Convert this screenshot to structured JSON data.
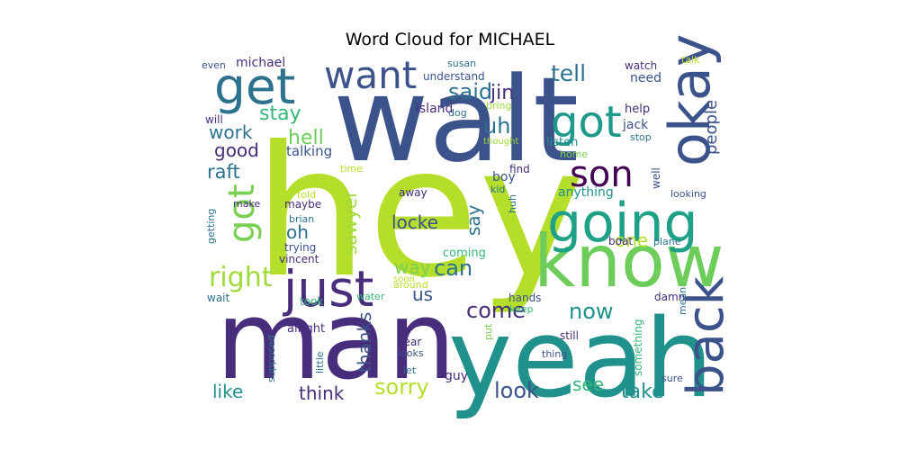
{
  "chart_data": {
    "type": "wordcloud",
    "title": "Word Cloud for MICHAEL",
    "words": [
      {
        "text": "walt",
        "color": "#3b528b"
      },
      {
        "text": "hey",
        "color": "#b5de2b"
      },
      {
        "text": "man",
        "color": "#472d7b"
      },
      {
        "text": "yeah",
        "color": "#21918c"
      },
      {
        "text": "know",
        "color": "#6ccd5a"
      },
      {
        "text": "going",
        "color": "#1fa187"
      },
      {
        "text": "get",
        "color": "#2c728e"
      },
      {
        "text": "okay",
        "color": "#3b528b"
      },
      {
        "text": "just",
        "color": "#472d7b"
      },
      {
        "text": "got",
        "color": "#1f9a8a"
      },
      {
        "text": "got",
        "color": "#7ad151"
      },
      {
        "text": "want",
        "color": "#3b528b"
      },
      {
        "text": "back",
        "color": "#3b528b"
      },
      {
        "text": "son",
        "color": "#440154"
      },
      {
        "text": "right",
        "color": "#a0da39"
      },
      {
        "text": "tell",
        "color": "#2c728e"
      },
      {
        "text": "said",
        "color": "#2c728e"
      },
      {
        "text": "jin",
        "color": "#472d7b"
      },
      {
        "text": "people",
        "color": "#3b528b"
      },
      {
        "text": "stay",
        "color": "#35b779"
      },
      {
        "text": "uh",
        "color": "#2c728e"
      },
      {
        "text": "hell",
        "color": "#6ccd5a"
      },
      {
        "text": "work",
        "color": "#2c728e"
      },
      {
        "text": "good",
        "color": "#472d7b"
      },
      {
        "text": "raft",
        "color": "#2c728e"
      },
      {
        "text": "sawyer",
        "color": "#a0da39"
      },
      {
        "text": "locke",
        "color": "#3b528b"
      },
      {
        "text": "say",
        "color": "#2c728e"
      },
      {
        "text": "oh",
        "color": "#2c728e"
      },
      {
        "text": "can",
        "color": "#2c728e"
      },
      {
        "text": "way",
        "color": "#7ad151"
      },
      {
        "text": "one",
        "color": "#b5de2b"
      },
      {
        "text": "now",
        "color": "#21918c"
      },
      {
        "text": "come",
        "color": "#472d7b"
      },
      {
        "text": "us",
        "color": "#3b528b"
      },
      {
        "text": "thanks",
        "color": "#3b528b"
      },
      {
        "text": "like",
        "color": "#21918c"
      },
      {
        "text": "think",
        "color": "#472d7b"
      },
      {
        "text": "sorry",
        "color": "#b5de2b"
      },
      {
        "text": "look",
        "color": "#3b528b"
      },
      {
        "text": "see",
        "color": "#35b779"
      },
      {
        "text": "take",
        "color": "#21918c"
      },
      {
        "text": "even",
        "color": "#3b528b"
      },
      {
        "text": "michael",
        "color": "#472d7b"
      },
      {
        "text": "understand",
        "color": "#3b528b"
      },
      {
        "text": "susan",
        "color": "#2c728e"
      },
      {
        "text": "watch",
        "color": "#472d7b"
      },
      {
        "text": "need",
        "color": "#3b528b"
      },
      {
        "text": "talk",
        "color": "#b5de2b"
      },
      {
        "text": "dog",
        "color": "#2c728e"
      },
      {
        "text": "island",
        "color": "#472d7b"
      },
      {
        "text": "bring",
        "color": "#a0da39"
      },
      {
        "text": "will",
        "color": "#472d7b"
      },
      {
        "text": "help",
        "color": "#472d7b"
      },
      {
        "text": "jack",
        "color": "#3b528b"
      },
      {
        "text": "stop",
        "color": "#2c728e"
      },
      {
        "text": "thought",
        "color": "#a0da39"
      },
      {
        "text": "listen",
        "color": "#21918c"
      },
      {
        "text": "home",
        "color": "#7ad151"
      },
      {
        "text": "talking",
        "color": "#3b528b"
      },
      {
        "text": "time",
        "color": "#b5de2b"
      },
      {
        "text": "find",
        "color": "#472d7b"
      },
      {
        "text": "boy",
        "color": "#3b528b"
      },
      {
        "text": "kid",
        "color": "#2c728e"
      },
      {
        "text": "well",
        "color": "#3b528b"
      },
      {
        "text": "looking",
        "color": "#3b528b"
      },
      {
        "text": "anything",
        "color": "#21918c"
      },
      {
        "text": "told",
        "color": "#b5de2b"
      },
      {
        "text": "away",
        "color": "#472d7b"
      },
      {
        "text": "make",
        "color": "#472d7b"
      },
      {
        "text": "maybe",
        "color": "#472d7b"
      },
      {
        "text": "brian",
        "color": "#2c728e"
      },
      {
        "text": "huh",
        "color": "#2c728e"
      },
      {
        "text": "getting",
        "color": "#2c728e"
      },
      {
        "text": "trying",
        "color": "#3b528b"
      },
      {
        "text": "boat",
        "color": "#472d7b"
      },
      {
        "text": "plane",
        "color": "#2c728e"
      },
      {
        "text": "coming",
        "color": "#35b779"
      },
      {
        "text": "vincent",
        "color": "#472d7b"
      },
      {
        "text": "around",
        "color": "#b5de2b"
      },
      {
        "text": "soon",
        "color": "#b5de2b"
      },
      {
        "text": "wait",
        "color": "#2c728e"
      },
      {
        "text": "took",
        "color": "#35b779"
      },
      {
        "text": "water",
        "color": "#35b779"
      },
      {
        "text": "hands",
        "color": "#3b528b"
      },
      {
        "text": "damn",
        "color": "#472d7b"
      },
      {
        "text": "mean",
        "color": "#2c728e"
      },
      {
        "text": "keep",
        "color": "#35b779"
      },
      {
        "text": "alright",
        "color": "#472d7b"
      },
      {
        "text": "supposed",
        "color": "#2c728e"
      },
      {
        "text": "little",
        "color": "#2c728e"
      },
      {
        "text": "hear",
        "color": "#472d7b"
      },
      {
        "text": "looks",
        "color": "#3b528b"
      },
      {
        "text": "put",
        "color": "#7ad151"
      },
      {
        "text": "still",
        "color": "#472d7b"
      },
      {
        "text": "thing",
        "color": "#3b528b"
      },
      {
        "text": "something",
        "color": "#35b779"
      },
      {
        "text": "let",
        "color": "#2c728e"
      },
      {
        "text": "guy",
        "color": "#472d7b"
      },
      {
        "text": "sure",
        "color": "#3b528b"
      }
    ]
  }
}
